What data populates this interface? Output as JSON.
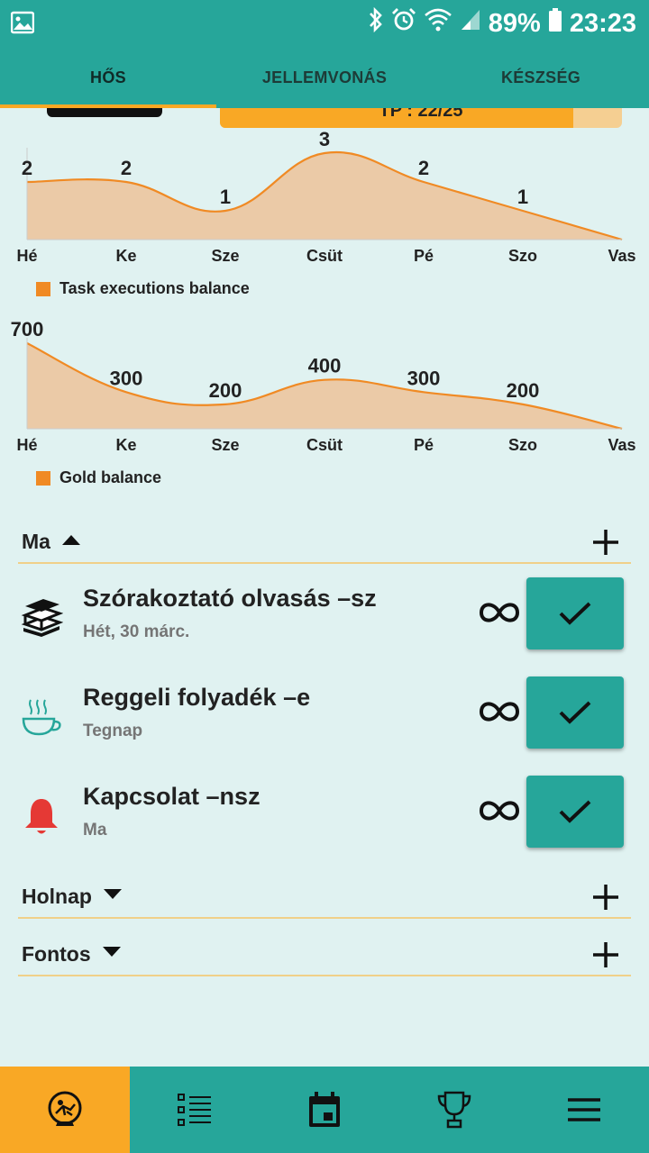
{
  "status_bar": {
    "battery": "89%",
    "time": "23:23"
  },
  "tabs": [
    {
      "label": "HŐS",
      "active": true
    },
    {
      "label": "JELLEMVONÁS",
      "active": false
    },
    {
      "label": "KÉSZSÉG",
      "active": false
    }
  ],
  "hero": {
    "tp_label": "TP : 22/25",
    "tp_current": 22,
    "tp_max": 25
  },
  "chart_data": [
    {
      "type": "area",
      "categories": [
        "Hé",
        "Ke",
        "Sze",
        "Csüt",
        "Pé",
        "Szo",
        "Vas"
      ],
      "series": [
        {
          "name": "Task executions balance",
          "values": [
            2,
            2,
            1,
            3,
            2,
            1,
            0
          ],
          "color": "#f08a24"
        }
      ],
      "data_labels": [
        "2",
        "2",
        "1",
        "3",
        "2",
        "1",
        ""
      ],
      "ylim": [
        0,
        3
      ],
      "legend": "bottom-left"
    },
    {
      "type": "area",
      "categories": [
        "Hé",
        "Ke",
        "Sze",
        "Csüt",
        "Pé",
        "Szo",
        "Vas"
      ],
      "series": [
        {
          "name": "Gold balance",
          "values": [
            700,
            300,
            200,
            400,
            300,
            200,
            0
          ],
          "color": "#f08a24"
        }
      ],
      "data_labels": [
        "700",
        "300",
        "200",
        "400",
        "300",
        "200",
        ""
      ],
      "ylim": [
        0,
        700
      ],
      "legend": "bottom-left"
    }
  ],
  "sections": {
    "today": {
      "title": "Ma",
      "expanded": true
    },
    "tomorrow": {
      "title": "Holnap",
      "expanded": false
    },
    "important": {
      "title": "Fontos",
      "expanded": false
    }
  },
  "tasks": [
    {
      "name": "Szórakoztató olvasás –sz",
      "date": "Hét, 30 márc.",
      "icon": "books-icon"
    },
    {
      "name": "Reggeli folyadék –e",
      "date": "Tegnap",
      "icon": "coffee-cup-icon"
    },
    {
      "name": "Kapcsolat –nsz",
      "date": "Ma",
      "icon": "bell-icon"
    }
  ],
  "bottom_nav": [
    {
      "icon": "hero-icon",
      "active": true
    },
    {
      "icon": "task-list-icon",
      "active": false
    },
    {
      "icon": "calendar-icon",
      "active": false
    },
    {
      "icon": "trophy-icon",
      "active": false
    },
    {
      "icon": "menu-icon",
      "active": false
    }
  ],
  "colors": {
    "primary": "#26a69a",
    "accent": "#f9a825",
    "chart": "#f08a24",
    "background": "#e0f2f1"
  }
}
